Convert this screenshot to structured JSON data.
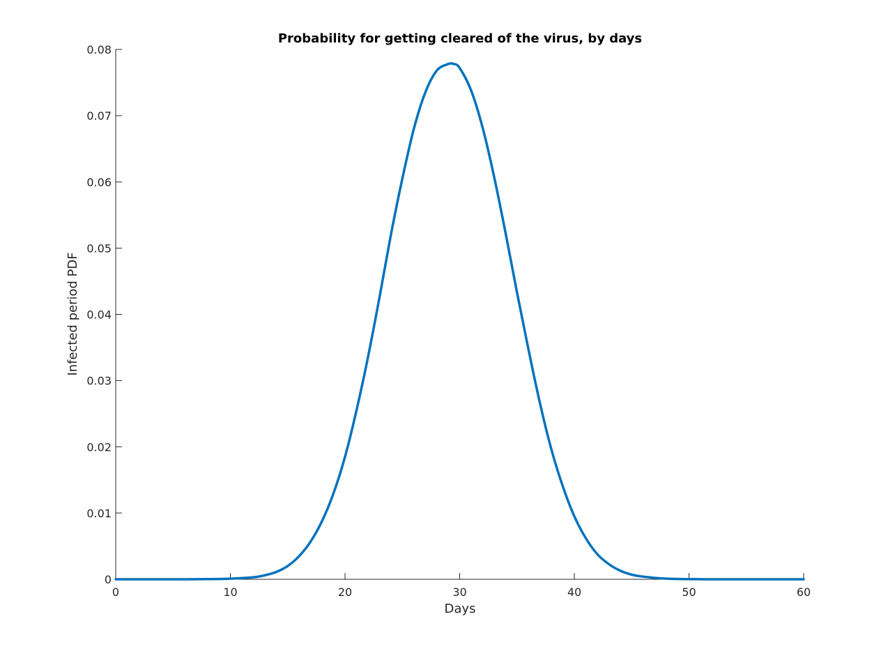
{
  "chart_data": {
    "type": "line",
    "title": "Probability for getting cleared of the virus, by days",
    "xlabel": "Days",
    "ylabel": "Infected period PDF",
    "xlim": [
      0,
      60
    ],
    "ylim": [
      0,
      0.08
    ],
    "grid": false,
    "x_ticks": [
      0,
      10,
      20,
      30,
      40,
      50,
      60
    ],
    "x_tick_labels": [
      "0",
      "10",
      "20",
      "30",
      "40",
      "50",
      "60"
    ],
    "y_ticks": [
      0,
      0.01,
      0.02,
      0.03,
      0.04,
      0.05,
      0.06,
      0.07,
      0.08
    ],
    "y_tick_labels": [
      "0",
      "0.01",
      "0.02",
      "0.03",
      "0.04",
      "0.05",
      "0.06",
      "0.07",
      "0.08"
    ],
    "series": [
      {
        "color": "#0072BD",
        "x": [
          0,
          2,
          4,
          6,
          8,
          10,
          12,
          13,
          14,
          15,
          16,
          17,
          18,
          19,
          20,
          21,
          22,
          23,
          24,
          25,
          26,
          27,
          28,
          29,
          29.5,
          30,
          31,
          32,
          33,
          34,
          35,
          36,
          37,
          38,
          39,
          40,
          41,
          42,
          43,
          44,
          45,
          46,
          48,
          50,
          52,
          54,
          56,
          58,
          60
        ],
        "y": [
          0,
          0,
          0,
          0,
          2e-05,
          9e-05,
          0.0003,
          0.0006,
          0.0011,
          0.002,
          0.0035,
          0.0057,
          0.0088,
          0.013,
          0.0185,
          0.0255,
          0.0335,
          0.0425,
          0.052,
          0.0605,
          0.068,
          0.0735,
          0.0768,
          0.0778,
          0.0778,
          0.0772,
          0.0738,
          0.0682,
          0.0608,
          0.0523,
          0.0433,
          0.0347,
          0.0266,
          0.0196,
          0.014,
          0.0095,
          0.0062,
          0.0038,
          0.0023,
          0.0013,
          0.0007,
          0.0004,
          0.0001,
          2e-05,
          0,
          0,
          0,
          0,
          0
        ]
      }
    ]
  }
}
